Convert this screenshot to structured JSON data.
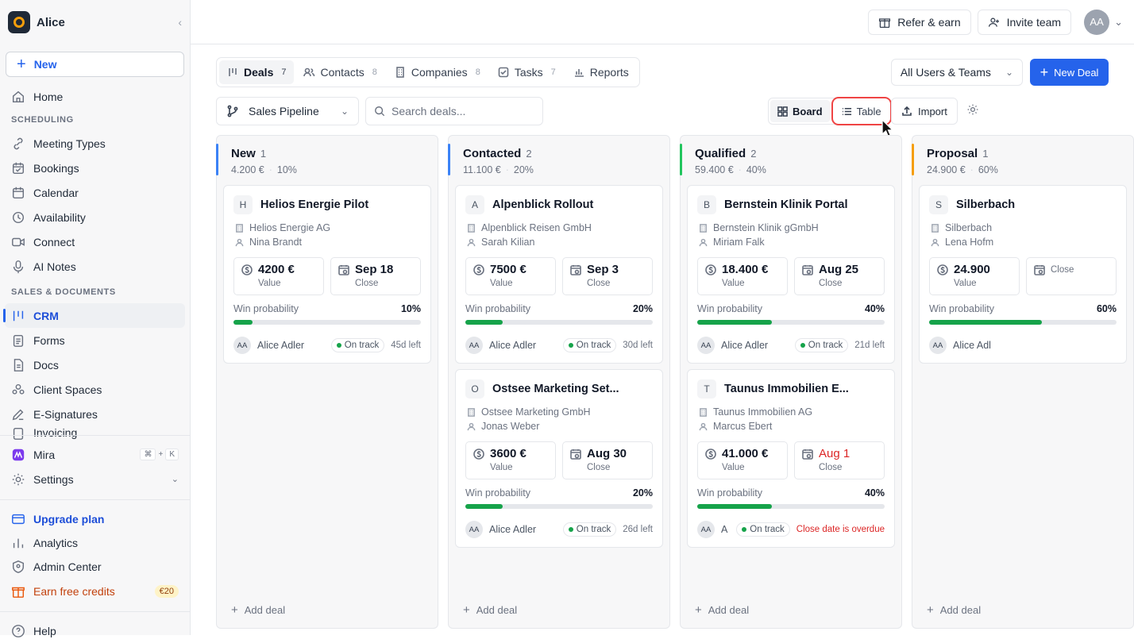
{
  "sidebar": {
    "workspace": "Alice",
    "new_label": "New",
    "home": "Home",
    "section_scheduling": "SCHEDULING",
    "scheduling": [
      "Meeting Types",
      "Bookings",
      "Calendar",
      "Availability",
      "Connect",
      "AI Notes"
    ],
    "section_sales": "SALES & DOCUMENTS",
    "sales": [
      "CRM",
      "Forms",
      "Docs",
      "Client Spaces",
      "E-Signatures",
      "Invoicing"
    ],
    "mira": "Mira",
    "kbd_cmd": "⌘",
    "kbd_plus": "+",
    "kbd_k": "K",
    "settings": "Settings",
    "upgrade": "Upgrade plan",
    "analytics": "Analytics",
    "admin": "Admin Center",
    "earn": "Earn free credits",
    "earn_badge": "€20",
    "help": "Help"
  },
  "topbar": {
    "refer": "Refer & earn",
    "invite": "Invite team",
    "avatar": "AA"
  },
  "tabs": [
    {
      "label": "Deals",
      "count": "7"
    },
    {
      "label": "Contacts",
      "count": "8"
    },
    {
      "label": "Companies",
      "count": "8"
    },
    {
      "label": "Tasks",
      "count": "7"
    },
    {
      "label": "Reports",
      "count": ""
    }
  ],
  "toolbar": {
    "users": "All Users & Teams",
    "new_deal": "New Deal",
    "pipeline": "Sales Pipeline",
    "search_placeholder": "Search deals...",
    "board": "Board",
    "table": "Table",
    "import": "Import"
  },
  "columns": [
    {
      "title": "New",
      "count": "1",
      "amount": "4.200 €",
      "pct": "10%",
      "accent": "#3b82f6",
      "cards": [
        {
          "initial": "H",
          "title": "Helios Energie Pilot",
          "company": "Helios Energie AG",
          "contact": "Nina Brandt",
          "value": "4200 €",
          "close": "Sep 18",
          "close_overdue": false,
          "prob": "10%",
          "prob_val": 10,
          "owner_initials": "AA",
          "owner": "Alice Adler",
          "status": "On track",
          "due": "45d left",
          "due_overdue": false
        }
      ]
    },
    {
      "title": "Contacted",
      "count": "2",
      "amount": "11.100 €",
      "pct": "20%",
      "accent": "#3b82f6",
      "cards": [
        {
          "initial": "A",
          "title": "Alpenblick Rollout",
          "company": "Alpenblick Reisen GmbH",
          "contact": "Sarah Kilian",
          "value": "7500 €",
          "close": "Sep 3",
          "close_overdue": false,
          "prob": "20%",
          "prob_val": 20,
          "owner_initials": "AA",
          "owner": "Alice Adler",
          "status": "On track",
          "due": "30d left",
          "due_overdue": false
        },
        {
          "initial": "O",
          "title": "Ostsee Marketing Set...",
          "company": "Ostsee Marketing GmbH",
          "contact": "Jonas Weber",
          "value": "3600 €",
          "close": "Aug 30",
          "close_overdue": false,
          "prob": "20%",
          "prob_val": 20,
          "owner_initials": "AA",
          "owner": "Alice Adler",
          "status": "On track",
          "due": "26d left",
          "due_overdue": false
        }
      ]
    },
    {
      "title": "Qualified",
      "count": "2",
      "amount": "59.400 €",
      "pct": "40%",
      "accent": "#22c55e",
      "cards": [
        {
          "initial": "B",
          "title": "Bernstein Klinik Portal",
          "company": "Bernstein Klinik gGmbH",
          "contact": "Miriam Falk",
          "value": "18.400 €",
          "close": "Aug 25",
          "close_overdue": false,
          "prob": "40%",
          "prob_val": 40,
          "owner_initials": "AA",
          "owner": "Alice Adler",
          "status": "On track",
          "due": "21d left",
          "due_overdue": false
        },
        {
          "initial": "T",
          "title": "Taunus Immobilien E...",
          "company": "Taunus Immobilien AG",
          "contact": "Marcus Ebert",
          "value": "41.000 €",
          "close": "Aug 1",
          "close_overdue": true,
          "prob": "40%",
          "prob_val": 40,
          "owner_initials": "AA",
          "owner": "A",
          "status": "On track",
          "due": "Close date is overdue",
          "due_overdue": true
        }
      ]
    },
    {
      "title": "Proposal",
      "count": "1",
      "amount": "24.900 €",
      "pct": "60%",
      "accent": "#f59e0b",
      "cards": [
        {
          "initial": "S",
          "title": "Silberbach",
          "company": "Silberbach",
          "contact": "Lena Hofm",
          "value": "24.900",
          "close": "",
          "close_overdue": false,
          "prob": "60%",
          "prob_val": 60,
          "owner_initials": "AA",
          "owner": "Alice Adl",
          "status": "",
          "due": "",
          "due_overdue": false
        }
      ]
    }
  ],
  "add_deal": "Add deal"
}
